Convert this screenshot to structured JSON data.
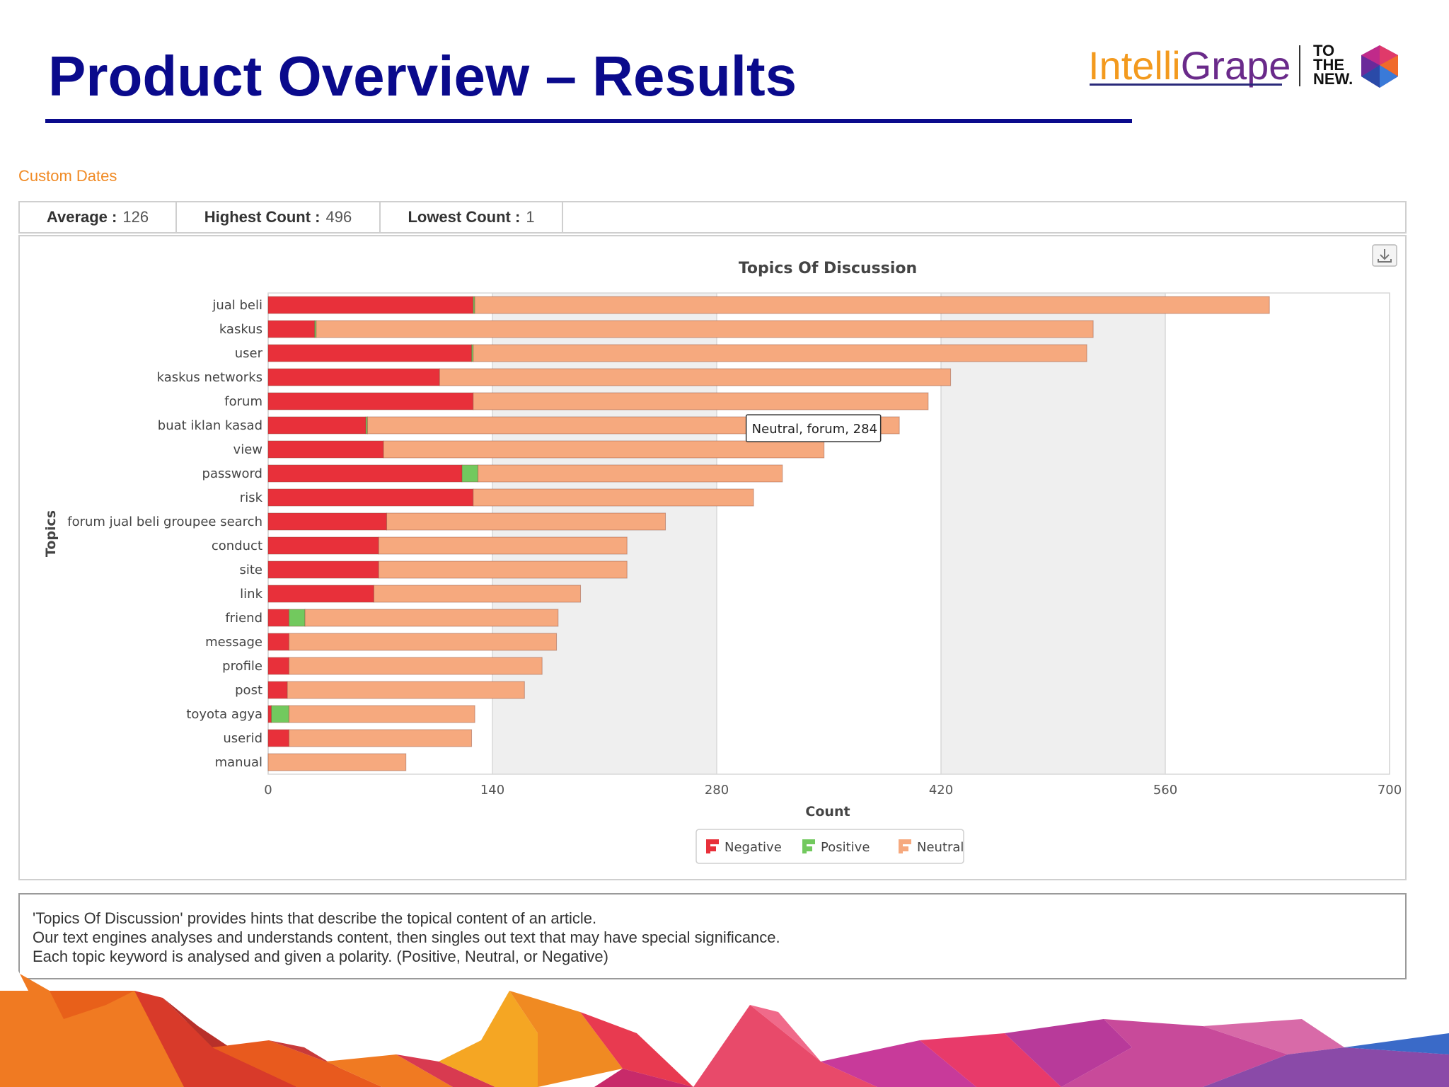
{
  "slide": {
    "title": "Product Overview – Results",
    "logo_text_1": "Intelli",
    "logo_text_2": "Grape",
    "logo_badge": [
      "TO",
      "THE",
      "NEW."
    ]
  },
  "filter": {
    "custom_dates_label": "Custom Dates"
  },
  "stats": [
    {
      "label": "Average :",
      "value": "126"
    },
    {
      "label": "Highest Count :",
      "value": "496"
    },
    {
      "label": "Lowest Count :",
      "value": "1"
    }
  ],
  "chart_data": {
    "type": "bar",
    "orientation": "horizontal",
    "stacked": true,
    "title": "Topics Of Discussion",
    "xlabel": "Count",
    "ylabel": "Topics",
    "xlim": [
      0,
      700
    ],
    "xticks": [
      0,
      140,
      280,
      420,
      560,
      700
    ],
    "grid": true,
    "legend_position": "bottom-center",
    "categories": [
      "jual beli",
      "kaskus",
      "user",
      "kaskus networks",
      "forum",
      "buat iklan kasad",
      "view",
      "password",
      "risk",
      "forum jual beli groupee search",
      "conduct",
      "site",
      "link",
      "friend",
      "message",
      "profile",
      "post",
      "toyota agya",
      "userid",
      "manual"
    ],
    "series": [
      {
        "name": "Negative",
        "color": "#e8303a",
        "values": [
          128,
          29,
          127,
          107,
          128,
          61,
          72,
          121,
          128,
          74,
          69,
          69,
          66,
          13,
          13,
          13,
          12,
          2,
          13,
          0
        ]
      },
      {
        "name": "Positive",
        "color": "#72c95e",
        "values": [
          1,
          1,
          1,
          0,
          0,
          1,
          0,
          10,
          0,
          0,
          0,
          0,
          0,
          10,
          0,
          0,
          0,
          11,
          0,
          0
        ]
      },
      {
        "name": "Neutral",
        "color": "#f6a97e",
        "values": [
          496,
          485,
          383,
          319,
          284,
          332,
          275,
          190,
          175,
          174,
          155,
          155,
          129,
          158,
          167,
          158,
          148,
          116,
          114,
          86
        ]
      }
    ],
    "tooltip": {
      "text": "Neutral, forum, 284"
    },
    "colors": {
      "negative": "#e8303a",
      "positive": "#72c95e",
      "neutral": "#f6a97e",
      "plot_band": "#efefef"
    }
  },
  "description": [
    "'Topics Of Discussion' provides hints that describe the topical content of an article.",
    "Our text engines analyses and understands content, then singles out text that may have special significance.",
    "Each topic keyword is analysed and given a polarity. (Positive, Neutral, or Negative)"
  ]
}
